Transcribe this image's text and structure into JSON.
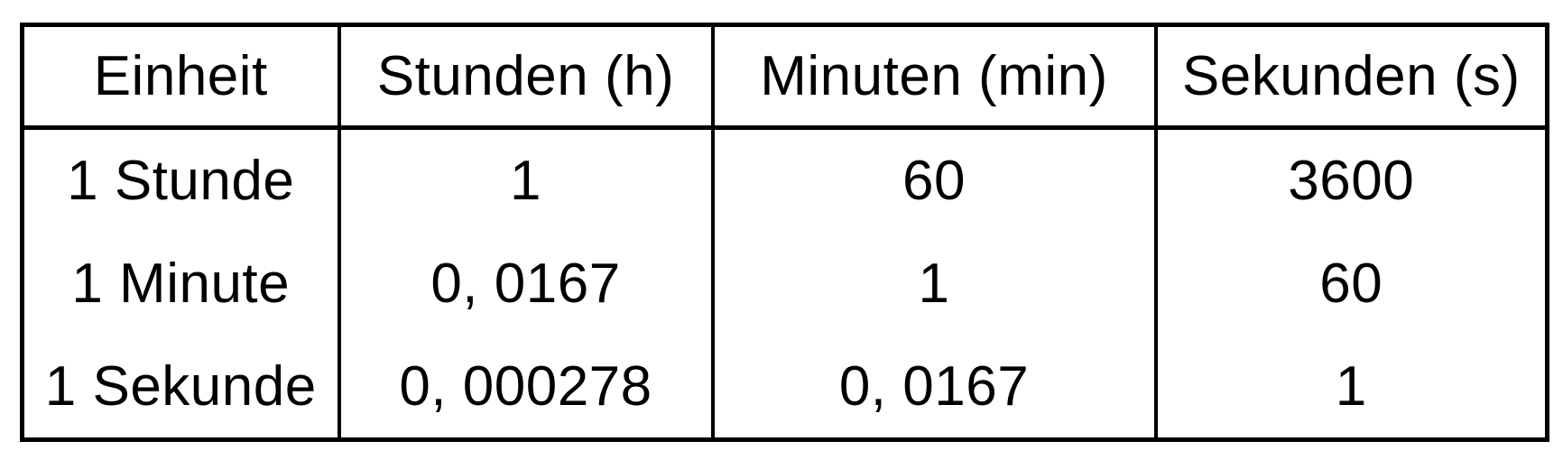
{
  "table": {
    "headers": [
      "Einheit",
      "Stunden (h)",
      "Minuten (min)",
      "Sekunden (s)"
    ],
    "rows": [
      [
        "1 Stunde",
        "1",
        "60",
        "3600"
      ],
      [
        "1 Minute",
        "0, 0167",
        "1",
        "60"
      ],
      [
        "1 Sekunde",
        "0, 000278",
        "0, 0167",
        "1"
      ]
    ]
  },
  "colors": {
    "background": "#ffffff",
    "text": "#000000",
    "border": "#000000"
  }
}
